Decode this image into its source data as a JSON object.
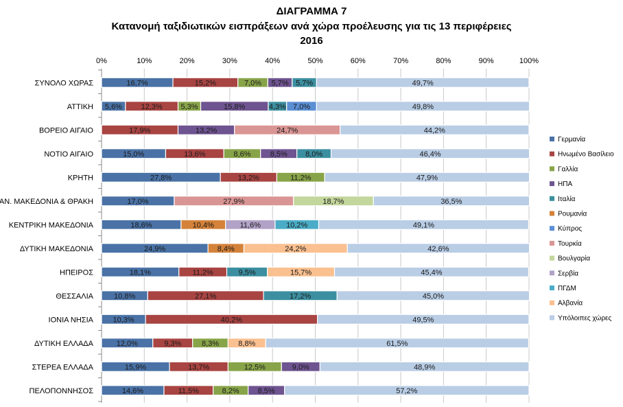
{
  "chart_data": {
    "type": "bar",
    "orientation": "horizontal",
    "stacked": "percent",
    "title": [
      "ΔΙΑΓΡΑΜΜΑ 7",
      "Κατανομή ταξιδιωτικών εισπράξεων ανά χώρα προέλευσης για τις 13 περιφέρειες",
      "2016"
    ],
    "xlim": [
      0,
      100
    ],
    "xticks": [
      "0%",
      "10%",
      "20%",
      "30%",
      "40%",
      "50%",
      "60%",
      "70%",
      "80%",
      "90%",
      "100%"
    ],
    "grid": true,
    "legend_position": "right",
    "categories": [
      "ΣΥΝΟΛΟ ΧΩΡΑΣ",
      "ΑΤΤΙΚΗ",
      "ΒΟΡΕΙΟ ΑΙΓΑΙΟ",
      "ΝΟΤΙΟ ΑΙΓΑΙΟ",
      "ΚΡΗΤΗ",
      "ΑΝ. ΜΑΚΕΔΟΝΙΑ & ΘΡΑΚΗ",
      "ΚΕΝΤΡΙΚΗ ΜΑΚΕΔΟΝΙΑ",
      "ΔΥΤΙΚΗ ΜΑΚΕΔΟΝΙΑ",
      "ΗΠΕΙΡΟΣ",
      "ΘΕΣΣΑΛΙΑ",
      "ΙΟΝΙΑ ΝΗΣΙΑ",
      "ΔΥΤΙΚΗ ΕΛΛΑΔΑ",
      "ΣΤΕΡΕΑ ΕΛΛΑΔΑ",
      "ΠΕΛΟΠΟΝΝΗΣΟΣ"
    ],
    "series": [
      {
        "name": "Γερμανία",
        "color": "#4a72a6",
        "values": [
          16.7,
          5.6,
          null,
          15.0,
          27.8,
          17.0,
          18.6,
          24.9,
          18.1,
          10.8,
          10.3,
          12.0,
          15.9,
          14.6
        ]
      },
      {
        "name": "Ηνωμένο Βασίλειο",
        "color": "#a84442",
        "values": [
          15.2,
          12.3,
          17.9,
          13.6,
          13.2,
          null,
          null,
          null,
          11.2,
          27.1,
          40.2,
          9.3,
          13.7,
          11.5
        ]
      },
      {
        "name": "Γαλλία",
        "color": "#88a449",
        "values": [
          7.0,
          5.3,
          null,
          8.6,
          11.2,
          null,
          null,
          null,
          null,
          null,
          null,
          8.3,
          12.5,
          8.2
        ]
      },
      {
        "name": "ΗΠΑ",
        "color": "#6e5490",
        "values": [
          5.7,
          15.8,
          13.2,
          8.5,
          null,
          null,
          null,
          null,
          null,
          null,
          null,
          null,
          9.0,
          8.5
        ]
      },
      {
        "name": "Ιταλία",
        "color": "#3c8fa0",
        "values": [
          5.7,
          4.3,
          null,
          8.0,
          null,
          null,
          null,
          null,
          9.5,
          17.2,
          null,
          null,
          null,
          null
        ]
      },
      {
        "name": "Ρουμανία",
        "color": "#d4823a",
        "values": [
          null,
          null,
          null,
          null,
          null,
          null,
          10.4,
          8.4,
          null,
          null,
          null,
          null,
          null,
          null
        ]
      },
      {
        "name": "Κύπρος",
        "color": "#5b8fd4",
        "values": [
          null,
          7.0,
          null,
          null,
          null,
          null,
          null,
          null,
          null,
          null,
          null,
          null,
          null,
          null
        ]
      },
      {
        "name": "Τουρκία",
        "color": "#d99594",
        "values": [
          null,
          null,
          24.7,
          null,
          null,
          27.9,
          null,
          null,
          null,
          null,
          null,
          null,
          null,
          null
        ]
      },
      {
        "name": "Βουλγαρία",
        "color": "#c3d69b",
        "values": [
          null,
          null,
          null,
          null,
          null,
          18.7,
          null,
          null,
          null,
          null,
          null,
          null,
          null,
          null
        ]
      },
      {
        "name": "Σερβία",
        "color": "#b2a2c7",
        "values": [
          null,
          null,
          null,
          null,
          null,
          null,
          11.6,
          null,
          null,
          null,
          null,
          null,
          null,
          null
        ]
      },
      {
        "name": "ΠΓΔΜ",
        "color": "#4aacc6",
        "values": [
          null,
          null,
          null,
          null,
          null,
          null,
          10.2,
          null,
          null,
          null,
          null,
          null,
          null,
          null
        ]
      },
      {
        "name": "Αλβανία",
        "color": "#fac090",
        "values": [
          null,
          null,
          null,
          null,
          null,
          null,
          null,
          24.2,
          15.7,
          null,
          null,
          8.8,
          null,
          null
        ]
      },
      {
        "name": "Υπόλοιπες χώρες",
        "color": "#b9cde5",
        "values": [
          49.7,
          49.8,
          44.2,
          46.4,
          47.9,
          36.5,
          49.1,
          42.6,
          45.4,
          45.0,
          49.5,
          61.5,
          48.9,
          57.2
        ]
      }
    ]
  }
}
